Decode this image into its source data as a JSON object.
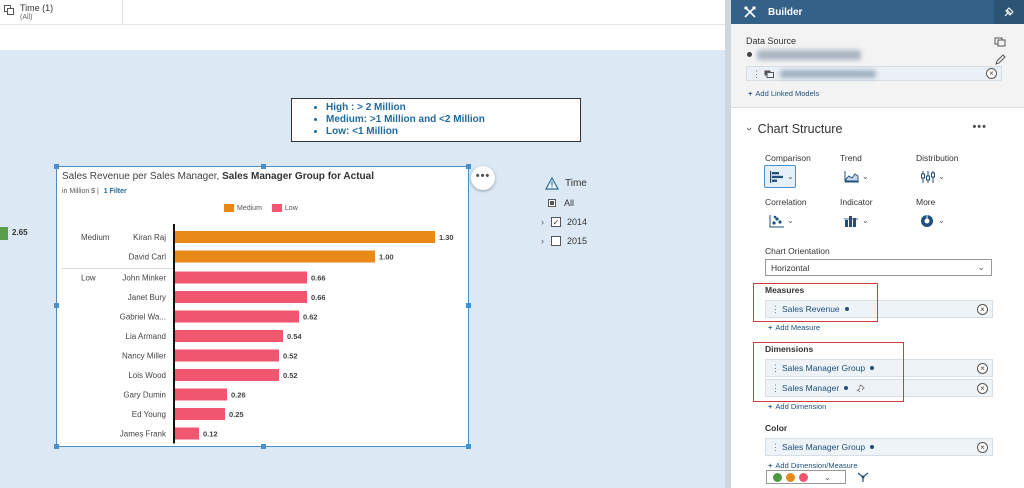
{
  "filter_bar": {
    "time_label": "Time (1)",
    "time_sub": "(All)"
  },
  "canvas": {
    "outside_value": "2.65",
    "note_items": [
      "High : > 2 Million",
      "Medium: >1 Million and <2 Million",
      "Low: <1 Million"
    ]
  },
  "chart": {
    "title_prefix": "Sales Revenue per Sales Manager, ",
    "title_bold": "Sales Manager Group for Actual",
    "unit": "in Million $",
    "filter_link": "1 Filter",
    "more_button": "•••"
  },
  "chart_data": {
    "type": "bar",
    "orientation": "horizontal",
    "title": "Sales Revenue per Sales Manager, Sales Manager Group for Actual",
    "unit": "in Million $",
    "legend": [
      "Medium",
      "Low"
    ],
    "colors": {
      "Medium": "#e8891a",
      "Low": "#f05670"
    },
    "groups": [
      {
        "name": "Medium",
        "items": [
          {
            "label": "Kiran Raj",
            "value": 1.3
          },
          {
            "label": "David Carl",
            "value": 1.0
          }
        ]
      },
      {
        "name": "Low",
        "items": [
          {
            "label": "John Minker",
            "value": 0.66
          },
          {
            "label": "Janet Bury",
            "value": 0.66
          },
          {
            "label": "Gabriel Wa...",
            "value": 0.62
          },
          {
            "label": "Lia Armand",
            "value": 0.54
          },
          {
            "label": "Nancy Miller",
            "value": 0.52
          },
          {
            "label": "Lois Wood",
            "value": 0.52
          },
          {
            "label": "Gary Dumin",
            "value": 0.26
          },
          {
            "label": "Ed Young",
            "value": 0.25
          },
          {
            "label": "James Frank",
            "value": 0.12
          }
        ]
      }
    ]
  },
  "time_tree": {
    "title": "Time",
    "rows": [
      {
        "label": "All",
        "type": "all"
      },
      {
        "label": "2014",
        "type": "year",
        "checked": true
      },
      {
        "label": "2015",
        "type": "year",
        "checked": false
      }
    ]
  },
  "builder": {
    "title": "Builder",
    "data_source_label": "Data Source",
    "add_linked_models": "Add Linked Models",
    "chart_structure": "Chart Structure",
    "chart_types": [
      {
        "label": "Comparison",
        "icon": "bar-chart-icon",
        "active": true
      },
      {
        "label": "Trend",
        "icon": "area-chart-icon",
        "active": false
      },
      {
        "label": "Distribution",
        "icon": "box-plot-icon",
        "active": false
      },
      {
        "label": "Correlation",
        "icon": "scatter-chart-icon",
        "active": false
      },
      {
        "label": "Indicator",
        "icon": "indicator-chart-icon",
        "active": false
      },
      {
        "label": "More",
        "icon": "donut-chart-icon",
        "active": false
      }
    ],
    "orientation_label": "Chart Orientation",
    "orientation_value": "Horizontal",
    "measures_label": "Measures",
    "measures": [
      "Sales Revenue"
    ],
    "add_measure": "Add Measure",
    "dimensions_label": "Dimensions",
    "dimensions": [
      "Sales Manager Group",
      "Sales Manager"
    ],
    "add_dimension": "Add Dimension",
    "color_label": "Color",
    "color_dimension": "Sales Manager Group",
    "add_dimension_measure": "Add Dimension/Measure",
    "palette": [
      "#4a9a3f",
      "#e8891a",
      "#f05670"
    ]
  }
}
